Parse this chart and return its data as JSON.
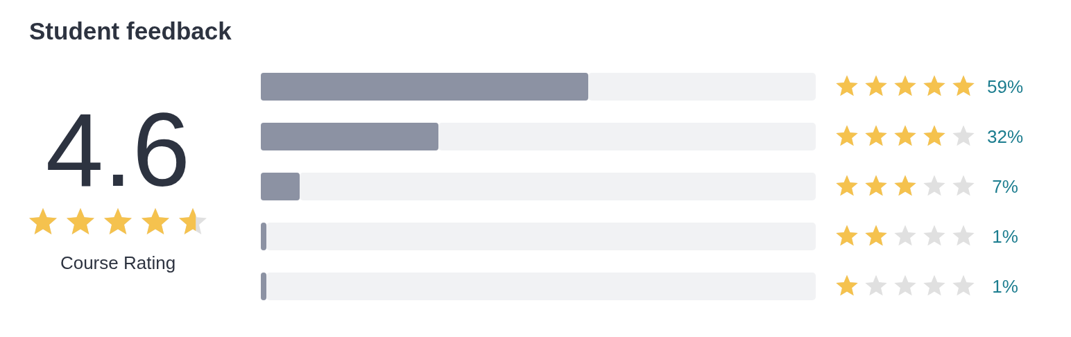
{
  "chart_data": {
    "type": "bar",
    "orientation": "horizontal",
    "title": "Student feedback",
    "categories": [
      null,
      null,
      null,
      null,
      null
    ],
    "values": [
      59,
      32,
      7,
      1,
      1
    ],
    "color": "#8c92a3",
    "value_labels": [
      "59%",
      "32%",
      "7%",
      "1%",
      "1%"
    ],
    "xlim": [
      0,
      100
    ],
    "annotations": [
      "4.6",
      "Course Rating"
    ]
  }
}
